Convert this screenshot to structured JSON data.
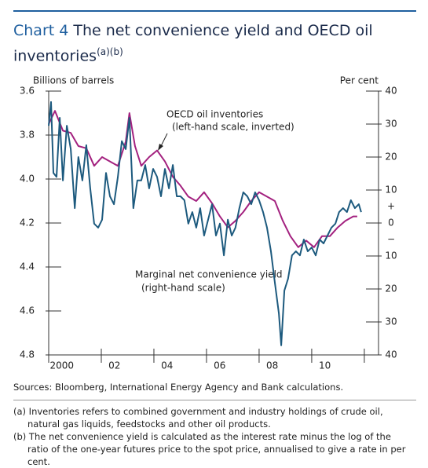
{
  "chart_data": {
    "type": "line",
    "title_label": "Chart 4",
    "title": "The net convenience yield and OECD oil inventories",
    "title_notes": "(a)(b)",
    "ylabel": "Billions of barrels",
    "y2label": "Per cent",
    "ylim": [
      3.6,
      4.8
    ],
    "y_inverted": true,
    "yticks": [
      3.6,
      3.8,
      {
        "value": 4,
        "label": "4.0"
      },
      4.2,
      4.4,
      4.6,
      4.8
    ],
    "y2lim": [
      -40,
      40
    ],
    "y2ticks": [
      40,
      30,
      20,
      10,
      0,
      {
        "value": -10,
        "label": "10"
      },
      {
        "value": -20,
        "label": "20"
      },
      {
        "value": -30,
        "label": "30"
      },
      {
        "value": -40,
        "label": "40"
      }
    ],
    "y2_sign_labels": [
      {
        "value": 5,
        "label": "+"
      },
      {
        "value": -5,
        "label": "−"
      }
    ],
    "xlim": [
      2000,
      2012.54
    ],
    "xticks": [
      {
        "value": 2000,
        "label": "2000"
      },
      {
        "value": 2002,
        "label": "02"
      },
      {
        "value": 2004,
        "label": "04"
      },
      {
        "value": 2006,
        "label": "06"
      },
      {
        "value": 2008,
        "label": "08"
      },
      {
        "value": 2010,
        "label": "10"
      },
      2012
    ],
    "annotations": [
      {
        "lines": [
          "OECD oil inventories",
          "(left-hand scale, inverted)"
        ]
      },
      {
        "lines": [
          "Marginal net convenience yield",
          "(right-hand scale)"
        ]
      }
    ],
    "series": [
      {
        "color": "#a3217f",
        "axis": "y",
        "x": [
          2000.0,
          2000.24,
          2000.54,
          2000.84,
          2001.13,
          2001.43,
          2001.73,
          2002.03,
          2002.33,
          2002.63,
          2002.93,
          2003.07,
          2003.28,
          2003.52,
          2003.82,
          2004.12,
          2004.42,
          2004.72,
          2005.01,
          2005.31,
          2005.61,
          2005.91,
          2006.21,
          2006.51,
          2006.81,
          2007.1,
          2007.4,
          2007.7,
          2008.0,
          2008.3,
          2008.6,
          2008.9,
          2009.19,
          2009.49,
          2009.79,
          2010.09,
          2010.39,
          2010.69,
          2010.99,
          2011.28,
          2011.58,
          2011.73
        ],
        "values": [
          3.75,
          3.69,
          3.78,
          3.79,
          3.85,
          3.86,
          3.94,
          3.9,
          3.92,
          3.94,
          3.83,
          3.7,
          3.85,
          3.94,
          3.9,
          3.87,
          3.92,
          3.99,
          4.03,
          4.08,
          4.1,
          4.06,
          4.11,
          4.17,
          4.22,
          4.19,
          4.15,
          4.1,
          4.06,
          4.08,
          4.1,
          4.19,
          4.26,
          4.31,
          4.28,
          4.31,
          4.26,
          4.26,
          4.22,
          4.19,
          4.17,
          4.17
        ]
      },
      {
        "color": "#1d5a7e",
        "axis": "y2",
        "x": [
          2000.0,
          2000.09,
          2000.18,
          2000.3,
          2000.42,
          2000.54,
          2000.69,
          2000.84,
          2000.99,
          2001.13,
          2001.28,
          2001.43,
          2001.58,
          2001.73,
          2001.88,
          2002.03,
          2002.18,
          2002.33,
          2002.48,
          2002.63,
          2002.78,
          2002.93,
          2003.07,
          2003.22,
          2003.37,
          2003.52,
          2003.67,
          2003.82,
          2003.97,
          2004.12,
          2004.27,
          2004.42,
          2004.57,
          2004.72,
          2004.87,
          2005.01,
          2005.16,
          2005.31,
          2005.46,
          2005.61,
          2005.76,
          2005.91,
          2006.06,
          2006.21,
          2006.36,
          2006.51,
          2006.66,
          2006.81,
          2006.96,
          2007.1,
          2007.25,
          2007.4,
          2007.55,
          2007.7,
          2007.85,
          2008.0,
          2008.15,
          2008.3,
          2008.45,
          2008.6,
          2008.75,
          2008.84,
          2008.96,
          2009.1,
          2009.25,
          2009.4,
          2009.55,
          2009.7,
          2009.85,
          2010.0,
          2010.15,
          2010.3,
          2010.45,
          2010.6,
          2010.75,
          2010.9,
          2011.04,
          2011.19,
          2011.34,
          2011.49,
          2011.64,
          2011.79,
          2011.88
        ],
        "values": [
          29.5,
          36.7,
          15.2,
          14.0,
          31.9,
          12.9,
          29.5,
          22.4,
          4.5,
          20.0,
          12.9,
          23.6,
          10.5,
          -0.2,
          -1.4,
          1.0,
          15.2,
          8.1,
          5.7,
          14.0,
          24.8,
          22.4,
          31.9,
          4.5,
          12.9,
          12.9,
          17.6,
          10.5,
          16.4,
          14.0,
          8.1,
          16.4,
          10.5,
          17.6,
          8.1,
          8.1,
          6.9,
          -0.2,
          3.3,
          -1.4,
          4.5,
          -3.8,
          1.0,
          5.7,
          -3.8,
          -0.2,
          -9.8,
          1.0,
          -3.8,
          -1.4,
          4.5,
          9.3,
          8.1,
          5.7,
          9.3,
          6.9,
          3.3,
          -1.4,
          -8.6,
          -18.1,
          -27.4,
          -37.1,
          -20.5,
          -16.9,
          -9.8,
          -8.6,
          -9.8,
          -5.0,
          -8.6,
          -7.4,
          -9.8,
          -5.0,
          -6.2,
          -3.8,
          -1.4,
          -0.2,
          3.3,
          4.5,
          3.3,
          6.9,
          4.5,
          5.7,
          3.3
        ]
      }
    ],
    "sources": "Sources:  Bloomberg, International Energy Agency and Bank calculations.",
    "footnotes": [
      "(a) Inventories refers to combined government and industry holdings of crude oil, natural gas liquids, feedstocks and other oil products.",
      "(b) The net convenience yield is calculated as the interest rate minus the log of the ratio of the one-year futures price to the spot price, annualised to give a rate in per cent."
    ]
  }
}
